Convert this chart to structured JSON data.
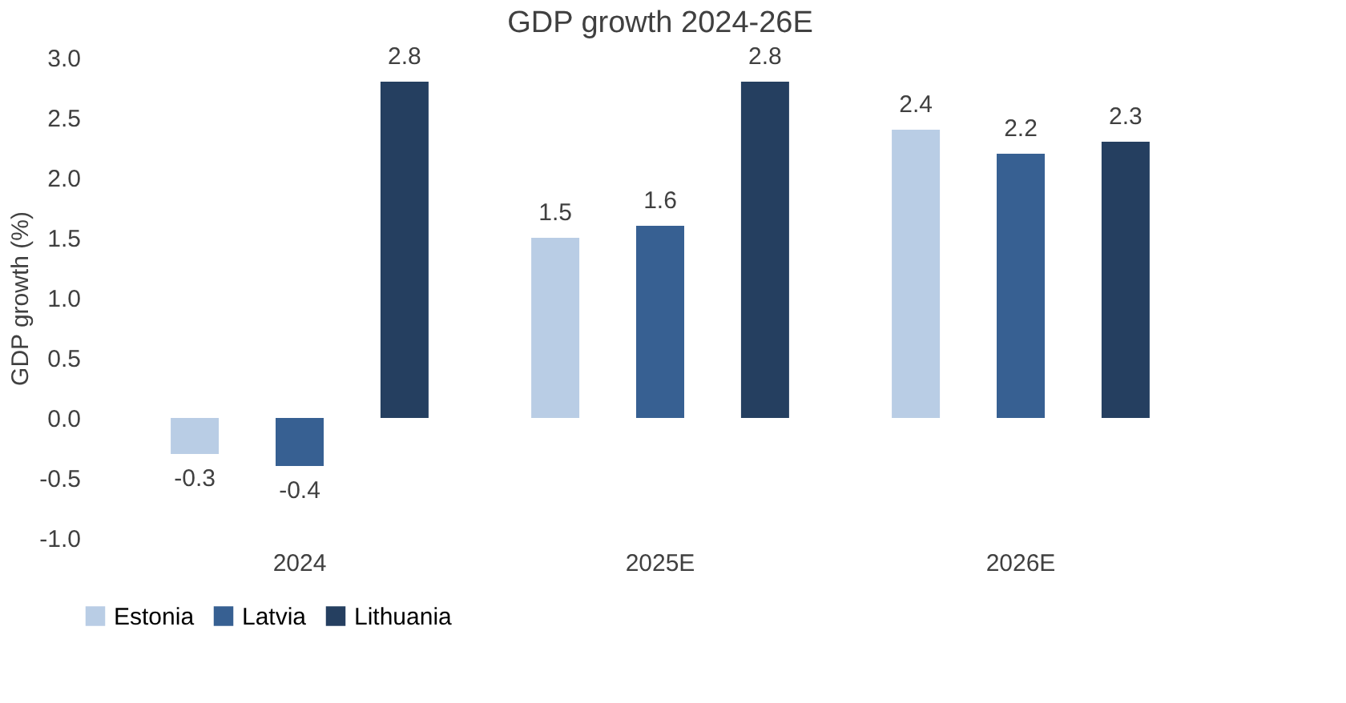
{
  "chart_data": {
    "type": "bar",
    "title": "GDP growth 2024-26E",
    "ylabel": "GDP growth (%)",
    "categories": [
      "2024",
      "2025E",
      "2026E"
    ],
    "series": [
      {
        "name": "Estonia",
        "color": "#b9cde5",
        "values": [
          -0.3,
          1.5,
          2.4
        ]
      },
      {
        "name": "Latvia",
        "color": "#376092",
        "values": [
          -0.4,
          1.6,
          2.2
        ]
      },
      {
        "name": "Lithuania",
        "color": "#253f60",
        "values": [
          2.8,
          2.8,
          2.3
        ]
      }
    ],
    "ylim": [
      -1.0,
      3.0
    ],
    "yticks": [
      {
        "value": -1.0,
        "label": "-1.0"
      },
      {
        "value": -0.5,
        "label": "-0.5"
      },
      {
        "value": 0,
        "label": "0.0"
      },
      {
        "value": 0.5,
        "label": "0.5"
      },
      {
        "value": 1.0,
        "label": "1.0"
      },
      {
        "value": 1.5,
        "label": "1.5"
      },
      {
        "value": 2.0,
        "label": "2.0"
      },
      {
        "value": 2.5,
        "label": "2.5"
      },
      {
        "value": 3.0,
        "label": "3.0"
      }
    ],
    "data_labels": true,
    "grid": false,
    "legend": "bottom"
  }
}
